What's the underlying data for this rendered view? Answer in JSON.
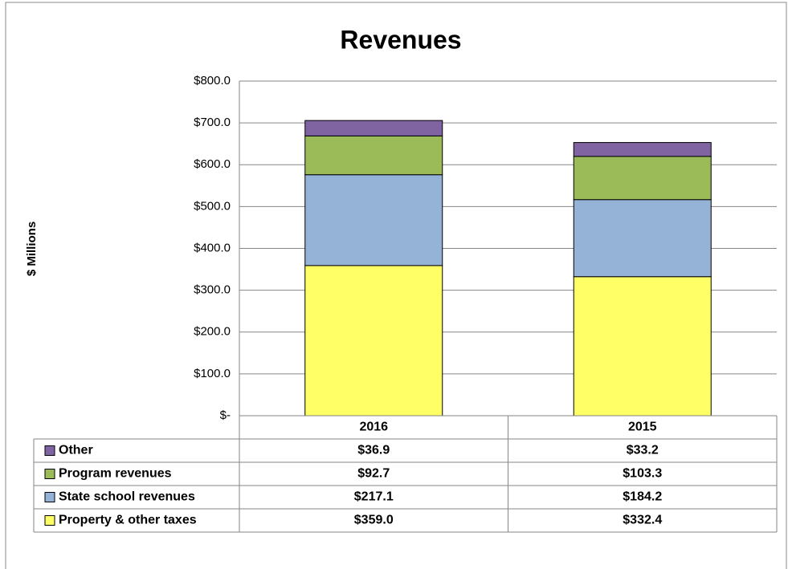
{
  "chart_data": {
    "type": "stacked_bar",
    "title": "Revenues",
    "y_label": "$ Millions",
    "categories": [
      "2016",
      "2015"
    ],
    "series": [
      {
        "name": "Property & other taxes",
        "color": "#ffff66",
        "values": [
          359.0,
          332.4
        ],
        "value_labels": [
          "$359.0",
          "$332.4"
        ]
      },
      {
        "name": "State school revenues",
        "color": "#95b3d7",
        "values": [
          217.1,
          184.2
        ],
        "value_labels": [
          "$217.1",
          "$184.2"
        ]
      },
      {
        "name": "Program revenues",
        "color": "#9bbb59",
        "values": [
          92.7,
          103.3
        ],
        "value_labels": [
          "$92.7",
          "$103.3"
        ]
      },
      {
        "name": "Other",
        "color": "#8064a2",
        "values": [
          36.9,
          33.2
        ],
        "value_labels": [
          "$36.9",
          "$33.2"
        ]
      }
    ],
    "ylim": [
      0,
      800
    ],
    "yticks": [
      {
        "value": 0,
        "label": "$-"
      },
      {
        "value": 100,
        "label": "$100.0"
      },
      {
        "value": 200,
        "label": "$200.0"
      },
      {
        "value": 300,
        "label": "$300.0"
      },
      {
        "value": 400,
        "label": "$400.0"
      },
      {
        "value": 500,
        "label": "$500.0"
      },
      {
        "value": 600,
        "label": "$600.0"
      },
      {
        "value": 700,
        "label": "$700.0"
      },
      {
        "value": 800,
        "label": "$800.0"
      }
    ],
    "grid": true
  }
}
